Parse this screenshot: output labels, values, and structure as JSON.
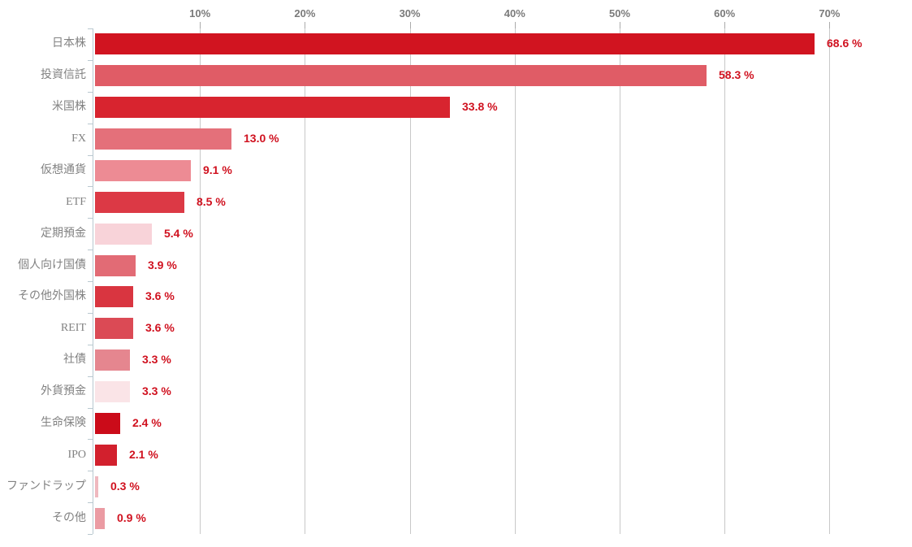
{
  "chart_data": {
    "type": "bar",
    "orientation": "horizontal",
    "title": "",
    "xlabel": "",
    "ylabel": "",
    "grid": true,
    "legend": false,
    "x_axis": {
      "position": "top",
      "range": [
        0,
        77.9
      ],
      "ticks": [
        {
          "value": 10,
          "label": "10%"
        },
        {
          "value": 20,
          "label": "20%"
        },
        {
          "value": 30,
          "label": "30%"
        },
        {
          "value": 40,
          "label": "40%"
        },
        {
          "value": 50,
          "label": "50%"
        },
        {
          "value": 60,
          "label": "60%"
        },
        {
          "value": 70,
          "label": "70%"
        }
      ]
    },
    "bars": [
      {
        "category": "日本株",
        "value": 68.6,
        "label": "68.6 %",
        "color": "#d11420"
      },
      {
        "category": "投資信託",
        "value": 58.3,
        "label": "58.3 %",
        "color": "#e05c66"
      },
      {
        "category": "米国株",
        "value": 33.8,
        "label": "33.8 %",
        "color": "#d8242f"
      },
      {
        "category": "FX",
        "value": 13.0,
        "label": "13.0 %",
        "color": "#e4707a"
      },
      {
        "category": "仮想通貨",
        "value": 9.1,
        "label": "9.1 %",
        "color": "#ed8b94"
      },
      {
        "category": "ETF",
        "value": 8.5,
        "label": "8.5 %",
        "color": "#dc3945"
      },
      {
        "category": "定期預金",
        "value": 5.4,
        "label": "5.4 %",
        "color": "#f8d3d9"
      },
      {
        "category": "個人向け国債",
        "value": 3.9,
        "label": "3.9 %",
        "color": "#e26b75"
      },
      {
        "category": "その他外国株",
        "value": 3.6,
        "label": "3.6 %",
        "color": "#d93540"
      },
      {
        "category": "REIT",
        "value": 3.6,
        "label": "3.6 %",
        "color": "#db4a55"
      },
      {
        "category": "社債",
        "value": 3.3,
        "label": "3.3 %",
        "color": "#e5868f"
      },
      {
        "category": "外貨預金",
        "value": 3.3,
        "label": "3.3 %",
        "color": "#fae4e7"
      },
      {
        "category": "生命保険",
        "value": 2.4,
        "label": "2.4 %",
        "color": "#cb0b19"
      },
      {
        "category": "IPO",
        "value": 2.1,
        "label": "2.1 %",
        "color": "#d2202d"
      },
      {
        "category": "ファンドラップ",
        "value": 0.3,
        "label": "0.3 %",
        "color": "#efb8bf"
      },
      {
        "category": "その他",
        "value": 0.9,
        "label": "0.9 %",
        "color": "#eb9ba3"
      }
    ],
    "colors": {
      "value_label": "#d0111f",
      "axis_tick_label": "#7a7a7a",
      "category_label": "#828282",
      "gridline": "#c8c8c8",
      "axis_line": "#b9c8d0"
    }
  }
}
